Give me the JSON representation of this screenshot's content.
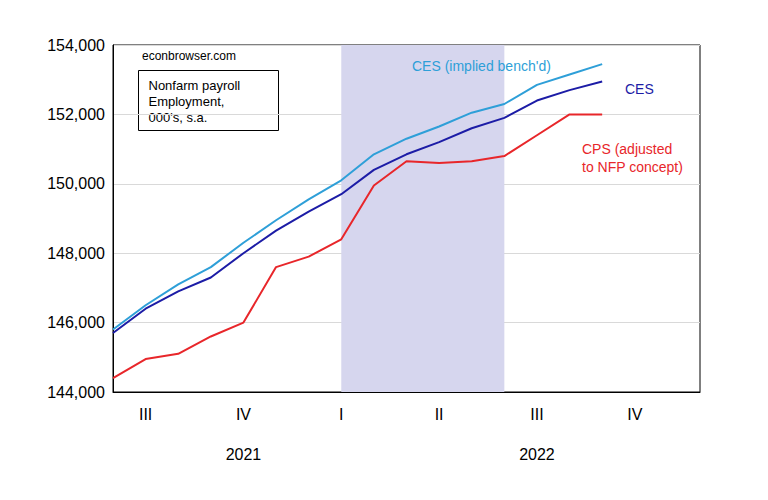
{
  "chart_data": {
    "type": "line",
    "title": "Nonfarm payroll\nEmployment,\n000's, s.a.",
    "annotations": [
      "econbrowser.com"
    ],
    "categories": [
      null,
      "III",
      null,
      null,
      "IV",
      null,
      null,
      "I",
      null,
      null,
      "II",
      null,
      null,
      "III",
      null,
      null,
      "IV",
      null,
      null
    ],
    "year_labels": [
      null,
      null,
      null,
      null,
      "2021",
      null,
      null,
      null,
      null,
      null,
      null,
      null,
      null,
      "2022",
      null,
      null,
      null,
      null,
      null
    ],
    "shaded_range": [
      7,
      12
    ],
    "series": [
      {
        "name": "CES (implied bench'd)",
        "color": "#2e9fd8",
        "values": [
          145800,
          146500,
          147100,
          147600,
          148300,
          148950,
          149550,
          150100,
          150850,
          151300,
          151650,
          152050,
          152300,
          152850,
          153150,
          153450,
          null,
          null,
          null
        ]
      },
      {
        "name": "CES",
        "color": "#1c1ca6",
        "values": [
          145700,
          146400,
          146900,
          147300,
          148000,
          148650,
          149200,
          149700,
          150400,
          150850,
          151200,
          151600,
          151900,
          152400,
          152700,
          152950,
          null,
          null,
          null
        ]
      },
      {
        "name": "CPS (adjusted\nto NFP concept)",
        "color": "#e8262a",
        "values": [
          144400,
          144950,
          145100,
          145600,
          146000,
          147600,
          147900,
          148400,
          149950,
          150650,
          150600,
          150650,
          150800,
          151400,
          152000,
          152000,
          null,
          null,
          null
        ]
      }
    ],
    "ylim": [
      144000,
      154000
    ],
    "yticks": [
      {
        "value": 144000,
        "label": "144,000"
      },
      {
        "value": 146000,
        "label": "146,000"
      },
      {
        "value": 148000,
        "label": "148,000"
      },
      {
        "value": 150000,
        "label": "150,000"
      },
      {
        "value": 152000,
        "label": "152,000"
      },
      {
        "value": 154000,
        "label": "154,000"
      }
    ],
    "grid": true
  }
}
